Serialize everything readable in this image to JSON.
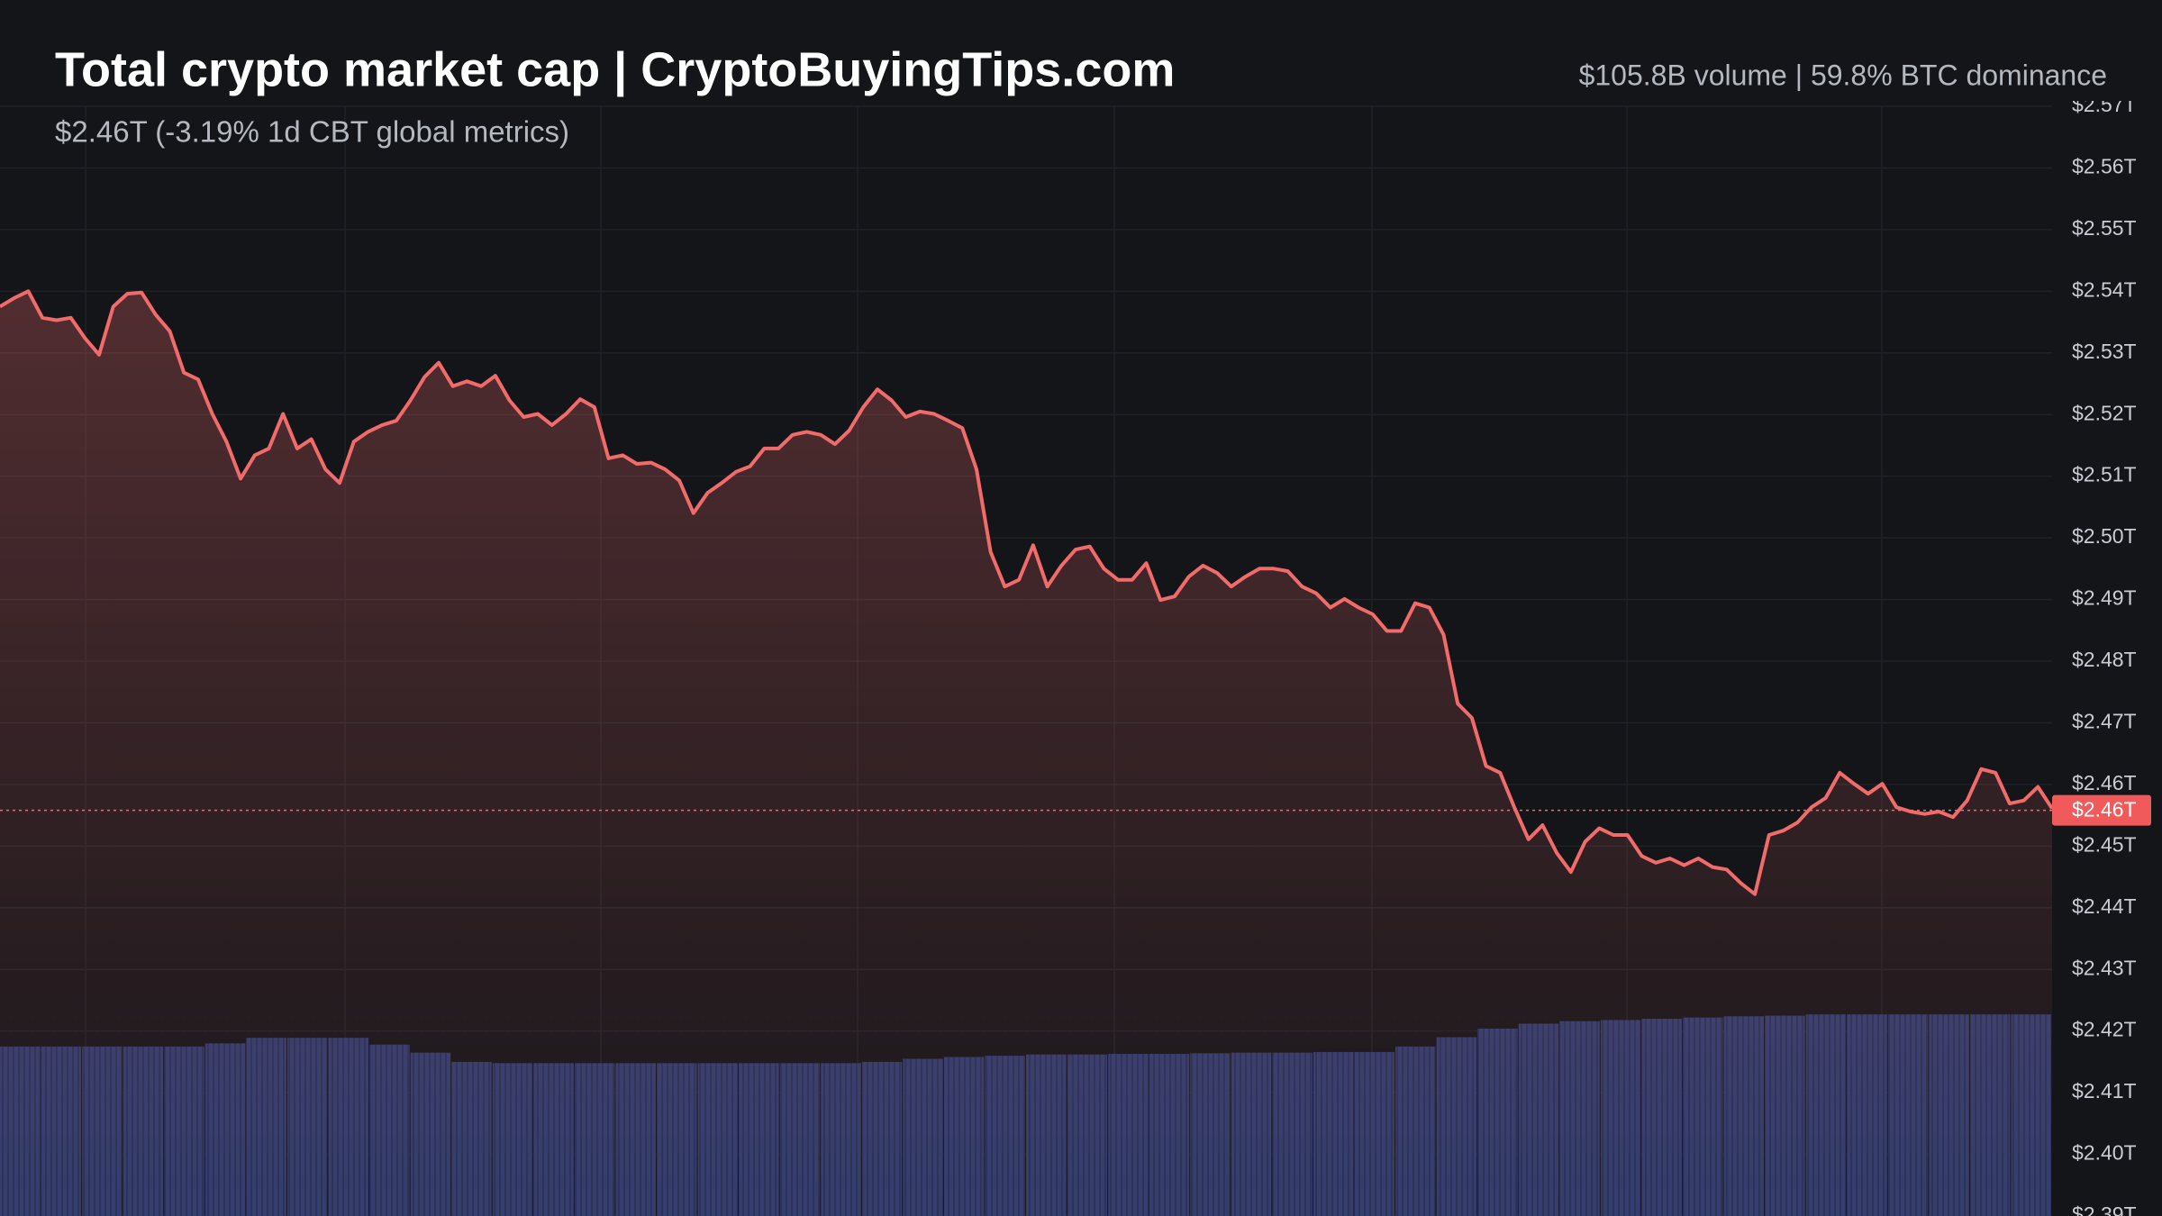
{
  "chart_data": {
    "type": "line",
    "title": "Total crypto market cap | CryptoBuyingTips.com",
    "subtitle": "$2.46T (-3.19% 1d CBT global metrics)",
    "header_stats": "$105.8B volume | 59.8% BTC dominance",
    "color": "#f26b6b",
    "values": [
      2.5375,
      2.5389,
      2.54,
      2.5357,
      2.5353,
      2.5357,
      2.5324,
      2.5297,
      2.5375,
      2.5396,
      2.5398,
      2.5362,
      2.5335,
      2.5268,
      2.5257,
      2.5201,
      2.5156,
      2.5096,
      2.5134,
      2.5145,
      2.5201,
      2.5145,
      2.516,
      2.5111,
      2.5089,
      2.5156,
      2.5172,
      2.5183,
      2.519,
      2.5223,
      2.5261,
      2.5284,
      2.5246,
      2.5254,
      2.5246,
      2.5263,
      2.5223,
      2.5196,
      2.5201,
      2.5183,
      2.5201,
      2.5225,
      2.5212,
      2.5129,
      2.5134,
      2.512,
      2.5122,
      2.5111,
      2.5093,
      2.504,
      2.5073,
      2.5089,
      2.5107,
      2.5116,
      2.5145,
      2.5145,
      2.5167,
      2.5172,
      2.5167,
      2.5152,
      2.5174,
      2.5212,
      2.5241,
      2.5223,
      2.5196,
      2.5205,
      2.5201,
      2.519,
      2.5178,
      2.5111,
      2.4977,
      2.4921,
      2.4932,
      2.4988,
      2.4921,
      2.4955,
      2.4981,
      2.4986,
      2.495,
      2.4932,
      2.4932,
      2.4959,
      2.4899,
      2.4905,
      2.4937,
      2.4955,
      2.4943,
      2.4921,
      2.4937,
      2.495,
      2.495,
      2.4946,
      2.4921,
      2.491,
      2.4887,
      2.4901,
      2.4887,
      2.4876,
      2.4849,
      2.4849,
      2.4894,
      2.4887,
      2.4843,
      2.4731,
      2.4708,
      2.463,
      2.4619,
      2.4563,
      2.4511,
      2.4534,
      2.4489,
      2.4458,
      2.4507,
      2.4529,
      2.4518,
      2.4518,
      2.4484,
      2.4473,
      2.448,
      2.4469,
      2.448,
      2.4466,
      2.4462,
      2.444,
      2.4422,
      2.4518,
      2.4525,
      2.4538,
      2.4563,
      2.4578,
      2.4619,
      2.4601,
      2.4585,
      2.4601,
      2.4563,
      2.4556,
      2.4552,
      2.4556,
      2.4547,
      2.4574,
      2.4625,
      2.4619,
      2.4569,
      2.4574,
      2.4596,
      2.4561
    ],
    "current_price": {
      "value": 2.4558,
      "label": "$2.46T"
    },
    "volume": {
      "color": "#2f3c6e",
      "values": [
        2.4175,
        2.4175,
        2.4175,
        2.4175,
        2.4175,
        2.418,
        2.4189,
        2.4189,
        2.4189,
        2.4178,
        2.4165,
        2.415,
        2.4148,
        2.4148,
        2.4148,
        2.4148,
        2.4148,
        2.4148,
        2.4148,
        2.4148,
        2.4148,
        2.415,
        2.4155,
        2.4158,
        2.416,
        2.4162,
        2.4162,
        2.4163,
        2.4163,
        2.4164,
        2.4165,
        2.4165,
        2.4166,
        2.4166,
        2.4175,
        2.419,
        2.4204,
        2.4212,
        2.4216,
        2.4218,
        2.422,
        2.4222,
        2.4224,
        2.4225,
        2.4227,
        2.4227,
        2.4227,
        2.4227,
        2.4227,
        2.4227
      ]
    },
    "ylim": [
      2.39,
      2.57
    ],
    "yticks": [
      {
        "value": 2.39,
        "label": "$2.39T"
      },
      {
        "value": 2.4,
        "label": "$2.40T"
      },
      {
        "value": 2.41,
        "label": "$2.41T"
      },
      {
        "value": 2.42,
        "label": "$2.42T"
      },
      {
        "value": 2.43,
        "label": "$2.43T"
      },
      {
        "value": 2.44,
        "label": "$2.44T"
      },
      {
        "value": 2.45,
        "label": "$2.45T"
      },
      {
        "value": 2.46,
        "label": "$2.46T"
      },
      {
        "value": 2.47,
        "label": "$2.47T"
      },
      {
        "value": 2.48,
        "label": "$2.48T"
      },
      {
        "value": 2.49,
        "label": "$2.49T"
      },
      {
        "value": 2.5,
        "label": "$2.50T"
      },
      {
        "value": 2.51,
        "label": "$2.51T"
      },
      {
        "value": 2.52,
        "label": "$2.52T"
      },
      {
        "value": 2.53,
        "label": "$2.53T"
      },
      {
        "value": 2.54,
        "label": "$2.54T"
      },
      {
        "value": 2.55,
        "label": "$2.55T"
      },
      {
        "value": 2.56,
        "label": "$2.56T"
      },
      {
        "value": 2.57,
        "label": "$2.57T"
      }
    ],
    "grid": true
  }
}
